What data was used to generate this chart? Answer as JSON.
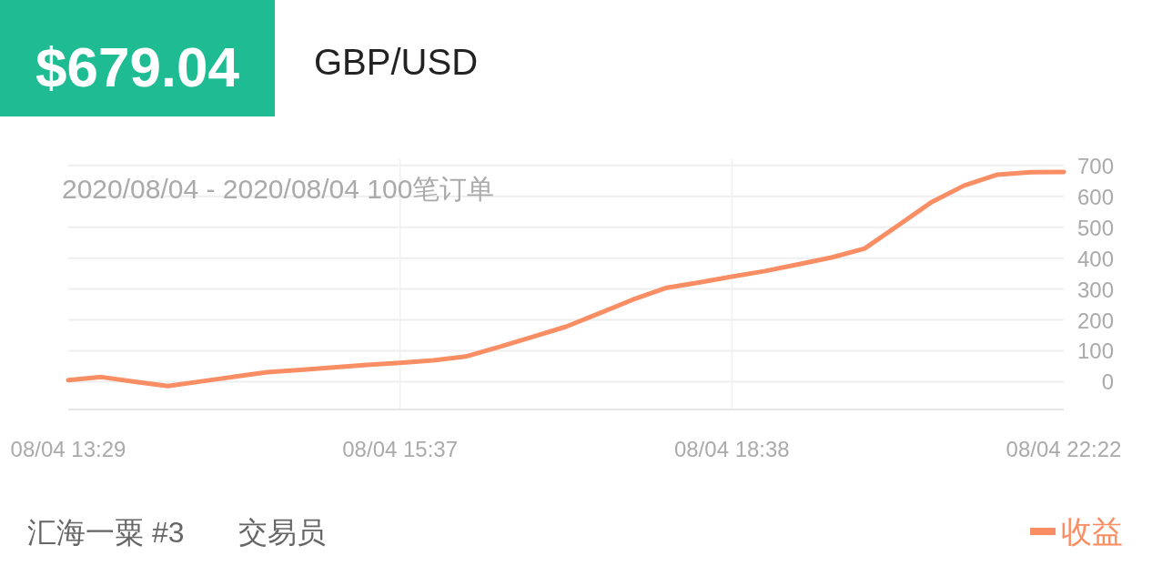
{
  "chart_data": {
    "type": "line",
    "title": "GBP/USD",
    "annotations": [
      "$679.04",
      "2020/08/04 - 2020/08/04  100笔订单",
      "汇海一粟 #3",
      "交易员"
    ],
    "categories": [
      "08/04 13:29",
      null,
      null,
      null,
      null,
      null,
      null,
      null,
      null,
      null,
      "08/04 15:37",
      null,
      null,
      null,
      null,
      null,
      null,
      null,
      null,
      null,
      "08/04 18:38",
      null,
      null,
      null,
      null,
      null,
      null,
      null,
      null,
      null,
      "08/04 22:22"
    ],
    "series": [
      {
        "name": "收益",
        "color": "#f98d64",
        "values": [
          5,
          15,
          0,
          -14,
          1,
          16,
          31,
          38,
          46,
          54,
          61,
          69,
          82,
          113,
          145,
          178,
          221,
          265,
          303,
          321,
          340,
          358,
          380,
          402,
          431,
          505,
          580,
          635,
          670,
          678,
          679
        ]
      }
    ],
    "ylim": [
      -90,
      720
    ],
    "yticks": [
      0,
      100,
      200,
      300,
      400,
      500,
      600,
      700
    ],
    "grid": true,
    "legend": "bottom right",
    "marker": "none",
    "line_style": "solid"
  }
}
